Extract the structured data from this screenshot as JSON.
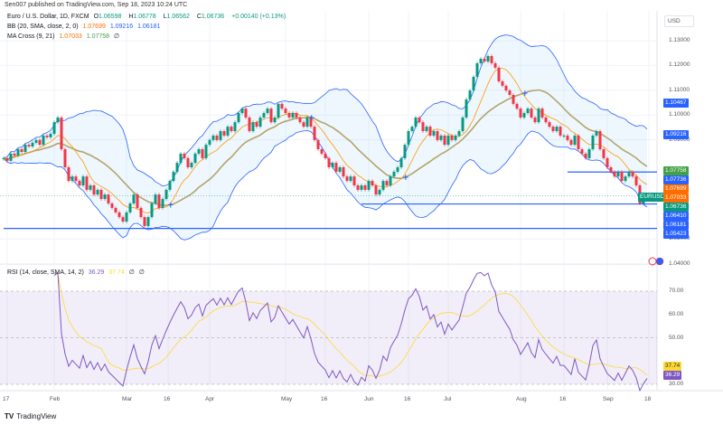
{
  "attribution": "Sen007 published on TradingView.com, Sep 18, 2023 10:24 UTC",
  "legend": {
    "symbol": "Euro / U.S. Dollar, 1D, FXCM",
    "open_key": "O",
    "open": "1.06598",
    "high_key": "H",
    "high": "1.06778",
    "low_key": "L",
    "low": "1.06562",
    "close_key": "C",
    "close": "1.06736",
    "change": "+0.00140 (+0.13%)",
    "bb_label": "BB (20, SMA, close, 2, 0)",
    "bb_basis": "1.07699",
    "bb_upper": "1.09216",
    "bb_lower": "1.06181",
    "ma_label": "MA Cross (9, 21)",
    "ma_fast": "1.07033",
    "ma_slow": "1.07758",
    "rsi_label": "RSI (14, close, SMA, 14, 2)",
    "rsi_value": "36.29",
    "rsi_ma": "37.74",
    "settings_icon": "∅"
  },
  "currency": "USD",
  "symbol_tag": "EURUSD",
  "footer": {
    "logo": "TV",
    "brand": "TradingView"
  },
  "colors": {
    "up": "#089981",
    "down": "#f23645",
    "bb_band": "#2962ff",
    "bb_fill": "rgba(33,150,243,0.08)",
    "ma_fast": "#ff9800",
    "ma_slow": "#b5a46a",
    "rsi": "#7e57c2",
    "rsi_ma": "#fdd835",
    "rsi_bg": "rgba(126,87,194,0.1)",
    "hline": "#2962ff",
    "cross": "#2962ff"
  },
  "chart_data": {
    "type": "candlestick",
    "symbol": "EURUSD",
    "interval": "1D",
    "closes": [
      1.0826,
      1.0815,
      1.0844,
      1.0836,
      1.0862,
      1.0851,
      1.088,
      1.0873,
      1.0888,
      1.0899,
      1.088,
      1.0917,
      1.091,
      1.0924,
      1.0971,
      1.099,
      1.0862,
      1.0789,
      1.0734,
      1.0752,
      1.0734,
      1.0716,
      1.0752,
      1.0698,
      1.0716,
      1.0679,
      1.0698,
      1.0661,
      1.0679,
      1.0643,
      1.0625,
      1.0607,
      1.0588,
      1.057,
      1.0607,
      1.0643,
      1.0679,
      1.0625,
      1.0588,
      1.0552,
      1.0588,
      1.0643,
      1.0679,
      1.0625,
      1.0661,
      1.0698,
      1.0734,
      1.0771,
      1.0807,
      1.0844,
      1.0826,
      1.0789,
      1.0807,
      1.0844,
      1.0862,
      1.0826,
      1.088,
      1.0899,
      1.0917,
      1.0899,
      1.0935,
      1.0917,
      1.0953,
      1.0935,
      1.0971,
      1.1008,
      1.1026,
      1.099,
      1.0935,
      1.0971,
      1.0953,
      1.099,
      1.1008,
      1.1026,
      1.0971,
      1.099,
      1.1045,
      1.1026,
      1.1008,
      1.099,
      1.1008,
      1.099,
      1.0971,
      1.0953,
      1.099,
      1.0953,
      1.0899,
      1.0862,
      1.0844,
      1.0826,
      1.0789,
      1.0807,
      1.0771,
      1.0789,
      1.0752,
      1.0734,
      1.0752,
      1.0716,
      1.0698,
      1.0716,
      1.0698,
      1.0734,
      1.0716,
      1.0679,
      1.0698,
      1.0734,
      1.0716,
      1.0752,
      1.0771,
      1.0789,
      1.0826,
      1.088,
      1.0935,
      1.0953,
      1.099,
      1.0971,
      1.0935,
      1.0953,
      1.0917,
      1.0935,
      1.0899,
      1.0917,
      1.088,
      1.0917,
      1.0899,
      1.0917,
      1.0935,
      1.099,
      1.1063,
      1.1099,
      1.1154,
      1.1209,
      1.1227,
      1.1216,
      1.1238,
      1.1209,
      1.1191,
      1.1136,
      1.1118,
      1.1099,
      1.1081,
      1.1045,
      1.1026,
      1.099,
      1.1008,
      1.1026,
      1.099,
      1.0971,
      1.1026,
      1.099,
      1.0971,
      1.0953,
      1.0935,
      1.0953,
      1.0917,
      1.0917,
      1.0899,
      1.088,
      1.0917,
      1.0862,
      1.0844,
      1.0826,
      1.0862,
      1.0917,
      1.0935,
      1.0862,
      1.0826,
      1.0789,
      1.0771,
      1.0752,
      1.0771,
      1.0734,
      1.0752,
      1.0771,
      1.0752,
      1.0716,
      1.0643,
      1.066,
      1.06736
    ],
    "x_ticks": [
      "17",
      "Feb",
      "Mar",
      "16",
      "Apr",
      "May",
      "16",
      "Jun",
      "16",
      "Jul",
      "Aug",
      "16",
      "Sep",
      "18"
    ],
    "price_ticks": [
      "1.13000",
      "1.12000",
      "1.11000",
      "1.10000",
      "1.09000",
      "1.05000",
      "1.04000"
    ],
    "price_ylim": [
      1.04,
      1.135
    ],
    "horizontal_lines": [
      1.07699,
      1.0641,
      1.05423
    ],
    "price_labels": [
      {
        "text": "1.10467",
        "value": 1.10467,
        "color": "#2962ff"
      },
      {
        "text": "1.09216",
        "value": 1.09216,
        "color": "#2962ff"
      },
      {
        "text": "1.07758",
        "value": 1.07758,
        "color": "#43a047"
      },
      {
        "text": "1.07736",
        "value": 1.07736,
        "color": "#2962ff"
      },
      {
        "text": "1.07699",
        "value": 1.07699,
        "color": "#ff6d00"
      },
      {
        "text": "1.07033",
        "value": 1.07033,
        "color": "#ff6d00"
      },
      {
        "text": "1.06736",
        "value": 1.06736,
        "color": "#089981"
      },
      {
        "text": "1.06410",
        "value": 1.0641,
        "color": "#2962ff"
      },
      {
        "text": "1.06181",
        "value": 1.06181,
        "color": "#2962ff"
      },
      {
        "text": "1.05423",
        "value": 1.05423,
        "color": "#2962ff"
      }
    ],
    "rsi_ticks": [
      "70.00",
      "60.00",
      "50.00",
      "30.00"
    ],
    "rsi_ylim": [
      30,
      70
    ],
    "rsi_labels": [
      {
        "text": "37.74",
        "value": 37.74,
        "color": "#fdd835"
      },
      {
        "text": "36.29",
        "value": 36.29,
        "color": "#7e57c2"
      }
    ],
    "grid": true
  }
}
